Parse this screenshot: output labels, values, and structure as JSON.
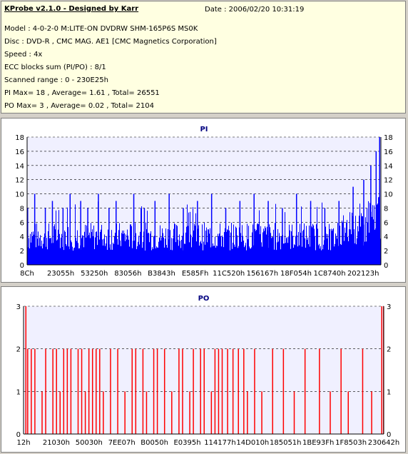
{
  "header": {
    "title": "KProbe v2.1.0 - Designed by Karr",
    "date": "Date : 2006/02/20 10:31:19",
    "lines": [
      "Model : 4-0-2-0 M:LITE-ON DVDRW SHM-165P6S MS0K",
      "Disc : DVD-R , CMC MAG. AE1 [CMC Magnetics Corporation]",
      "Speed : 4x",
      "ECC blocks sum (PI/PO) : 8/1",
      "Scanned range : 0 - 230E25h",
      "PI Max= 18 , Average= 1.61 , Total= 26551",
      "PO Max= 3 , Average= 0.02 , Total= 2104"
    ]
  },
  "colors": {
    "pi": "#0000ff",
    "po": "#ff0000",
    "plot_bg": "#f0f0ff",
    "grid": "#000000"
  },
  "chart_data": [
    {
      "type": "bar",
      "title": "PI",
      "ylim": [
        0,
        18
      ],
      "yticks": [
        0,
        2,
        4,
        6,
        8,
        10,
        12,
        14,
        16,
        18
      ],
      "xticks": [
        "8Ch",
        "23055h",
        "53250h",
        "83056h",
        "B3843h",
        "E585Fh",
        "11C520h",
        "156167h",
        "18F054h",
        "1C8740h",
        "202123h"
      ],
      "grid": "horizontal dashed",
      "baseline_range": [
        2,
        6
      ],
      "spikes": [
        {
          "x": 0.0,
          "v": 8
        },
        {
          "x": 0.02,
          "v": 10
        },
        {
          "x": 0.05,
          "v": 8
        },
        {
          "x": 0.07,
          "v": 9
        },
        {
          "x": 0.1,
          "v": 8
        },
        {
          "x": 0.12,
          "v": 10
        },
        {
          "x": 0.15,
          "v": 9
        },
        {
          "x": 0.17,
          "v": 8
        },
        {
          "x": 0.2,
          "v": 10
        },
        {
          "x": 0.23,
          "v": 8
        },
        {
          "x": 0.25,
          "v": 9
        },
        {
          "x": 0.3,
          "v": 10
        },
        {
          "x": 0.33,
          "v": 8
        },
        {
          "x": 0.36,
          "v": 9
        },
        {
          "x": 0.4,
          "v": 10
        },
        {
          "x": 0.44,
          "v": 8
        },
        {
          "x": 0.48,
          "v": 9
        },
        {
          "x": 0.52,
          "v": 10
        },
        {
          "x": 0.56,
          "v": 8
        },
        {
          "x": 0.6,
          "v": 9
        },
        {
          "x": 0.64,
          "v": 10
        },
        {
          "x": 0.68,
          "v": 9
        },
        {
          "x": 0.72,
          "v": 8
        },
        {
          "x": 0.76,
          "v": 10
        },
        {
          "x": 0.8,
          "v": 9
        },
        {
          "x": 0.84,
          "v": 8
        },
        {
          "x": 0.88,
          "v": 9
        },
        {
          "x": 0.92,
          "v": 11
        },
        {
          "x": 0.95,
          "v": 12
        },
        {
          "x": 0.97,
          "v": 14
        },
        {
          "x": 0.985,
          "v": 16
        },
        {
          "x": 0.995,
          "v": 18
        }
      ]
    },
    {
      "type": "bar",
      "title": "PO",
      "ylim": [
        0,
        3
      ],
      "yticks": [
        0,
        1,
        2,
        3
      ],
      "xticks": [
        "12h",
        "21030h",
        "50030h",
        "7EE07h",
        "B0050h",
        "E0395h",
        "114177h",
        "14D010h",
        "185051h",
        "1BE93Fh",
        "1F8503h",
        "230642h"
      ],
      "grid": "horizontal dashed",
      "spikes": [
        {
          "x": 0.005,
          "v": 3
        },
        {
          "x": 0.01,
          "v": 2
        },
        {
          "x": 0.02,
          "v": 2
        },
        {
          "x": 0.03,
          "v": 2
        },
        {
          "x": 0.05,
          "v": 1
        },
        {
          "x": 0.06,
          "v": 2
        },
        {
          "x": 0.08,
          "v": 2
        },
        {
          "x": 0.09,
          "v": 2
        },
        {
          "x": 0.1,
          "v": 1
        },
        {
          "x": 0.11,
          "v": 2
        },
        {
          "x": 0.12,
          "v": 2
        },
        {
          "x": 0.13,
          "v": 2
        },
        {
          "x": 0.15,
          "v": 2
        },
        {
          "x": 0.16,
          "v": 2
        },
        {
          "x": 0.17,
          "v": 1
        },
        {
          "x": 0.18,
          "v": 2
        },
        {
          "x": 0.19,
          "v": 2
        },
        {
          "x": 0.2,
          "v": 2
        },
        {
          "x": 0.21,
          "v": 2
        },
        {
          "x": 0.22,
          "v": 1
        },
        {
          "x": 0.24,
          "v": 2
        },
        {
          "x": 0.26,
          "v": 2
        },
        {
          "x": 0.28,
          "v": 1
        },
        {
          "x": 0.3,
          "v": 2
        },
        {
          "x": 0.31,
          "v": 2
        },
        {
          "x": 0.33,
          "v": 2
        },
        {
          "x": 0.34,
          "v": 1
        },
        {
          "x": 0.36,
          "v": 2
        },
        {
          "x": 0.37,
          "v": 2
        },
        {
          "x": 0.39,
          "v": 2
        },
        {
          "x": 0.41,
          "v": 1
        },
        {
          "x": 0.43,
          "v": 2
        },
        {
          "x": 0.44,
          "v": 2
        },
        {
          "x": 0.46,
          "v": 1
        },
        {
          "x": 0.47,
          "v": 2
        },
        {
          "x": 0.49,
          "v": 2
        },
        {
          "x": 0.5,
          "v": 2
        },
        {
          "x": 0.52,
          "v": 1
        },
        {
          "x": 0.53,
          "v": 2
        },
        {
          "x": 0.54,
          "v": 2
        },
        {
          "x": 0.55,
          "v": 2
        },
        {
          "x": 0.565,
          "v": 2
        },
        {
          "x": 0.58,
          "v": 2
        },
        {
          "x": 0.595,
          "v": 2
        },
        {
          "x": 0.61,
          "v": 2
        },
        {
          "x": 0.62,
          "v": 1
        },
        {
          "x": 0.64,
          "v": 2
        },
        {
          "x": 0.66,
          "v": 1
        },
        {
          "x": 0.69,
          "v": 2
        },
        {
          "x": 0.72,
          "v": 2
        },
        {
          "x": 0.75,
          "v": 1
        },
        {
          "x": 0.78,
          "v": 2
        },
        {
          "x": 0.82,
          "v": 2
        },
        {
          "x": 0.85,
          "v": 1
        },
        {
          "x": 0.88,
          "v": 2
        },
        {
          "x": 0.9,
          "v": 1
        },
        {
          "x": 0.94,
          "v": 2
        },
        {
          "x": 0.965,
          "v": 1
        },
        {
          "x": 0.993,
          "v": 3
        },
        {
          "x": 0.998,
          "v": 3
        }
      ]
    }
  ]
}
